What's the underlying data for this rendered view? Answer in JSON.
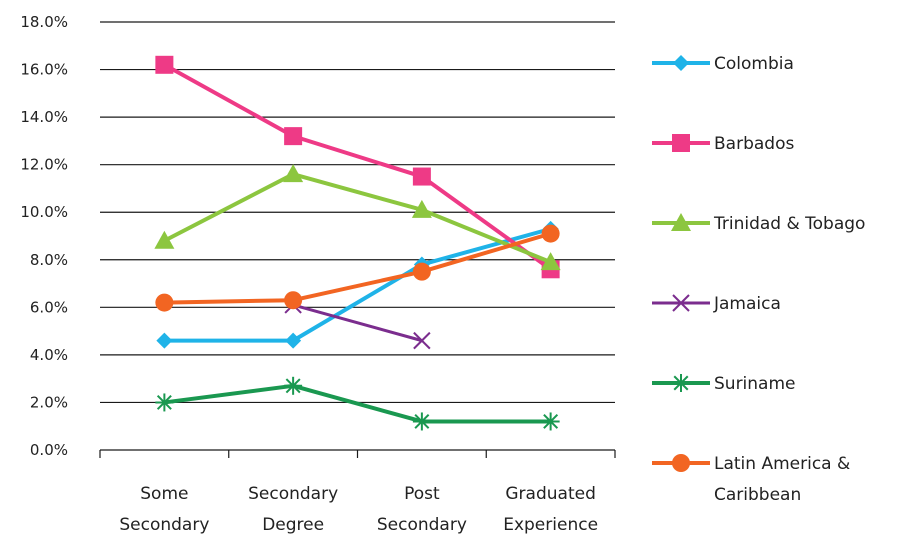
{
  "chart_data": {
    "type": "line",
    "title": "",
    "xlabel": "",
    "ylabel": "",
    "ylim": [
      0,
      18
    ],
    "y_ticks": [
      "0.0%",
      "2.0%",
      "4.0%",
      "6.0%",
      "8.0%",
      "10.0%",
      "12.0%",
      "14.0%",
      "16.0%",
      "18.0%"
    ],
    "categories": [
      [
        "Some",
        "Secondary"
      ],
      [
        "Secondary",
        "Degree"
      ],
      [
        "Post",
        "Secondary"
      ],
      [
        "Graduated",
        "Experience"
      ]
    ],
    "grid": "horizontal",
    "legend_position": "right",
    "series": [
      {
        "name": "Colombia",
        "legend_lines": [
          "Colombia"
        ],
        "color": "#1fb3e8",
        "marker": "diamond",
        "values": [
          4.6,
          4.6,
          7.8,
          9.3
        ]
      },
      {
        "name": "Barbados",
        "legend_lines": [
          "Barbados"
        ],
        "color": "#ee3a86",
        "marker": "square",
        "values": [
          16.2,
          13.2,
          11.5,
          7.6
        ]
      },
      {
        "name": "Trinidad & Tobago",
        "legend_lines": [
          "Trinidad & Tobago"
        ],
        "color": "#8cc63f",
        "marker": "triangle",
        "values": [
          8.8,
          11.6,
          10.1,
          7.9
        ]
      },
      {
        "name": "Jamaica",
        "legend_lines": [
          "Jamaica"
        ],
        "color": "#7b2d8e",
        "marker": "x",
        "values": [
          null,
          6.1,
          4.6,
          null
        ]
      },
      {
        "name": "Suriname",
        "legend_lines": [
          "Suriname"
        ],
        "color": "#1a9850",
        "marker": "star",
        "values": [
          2.0,
          2.7,
          1.2,
          1.2
        ]
      },
      {
        "name": "Latin America & Caribbean",
        "legend_lines": [
          "Latin America &",
          "Caribbean"
        ],
        "color": "#f26522",
        "marker": "circle",
        "values": [
          6.2,
          6.3,
          7.5,
          9.1
        ]
      }
    ]
  }
}
